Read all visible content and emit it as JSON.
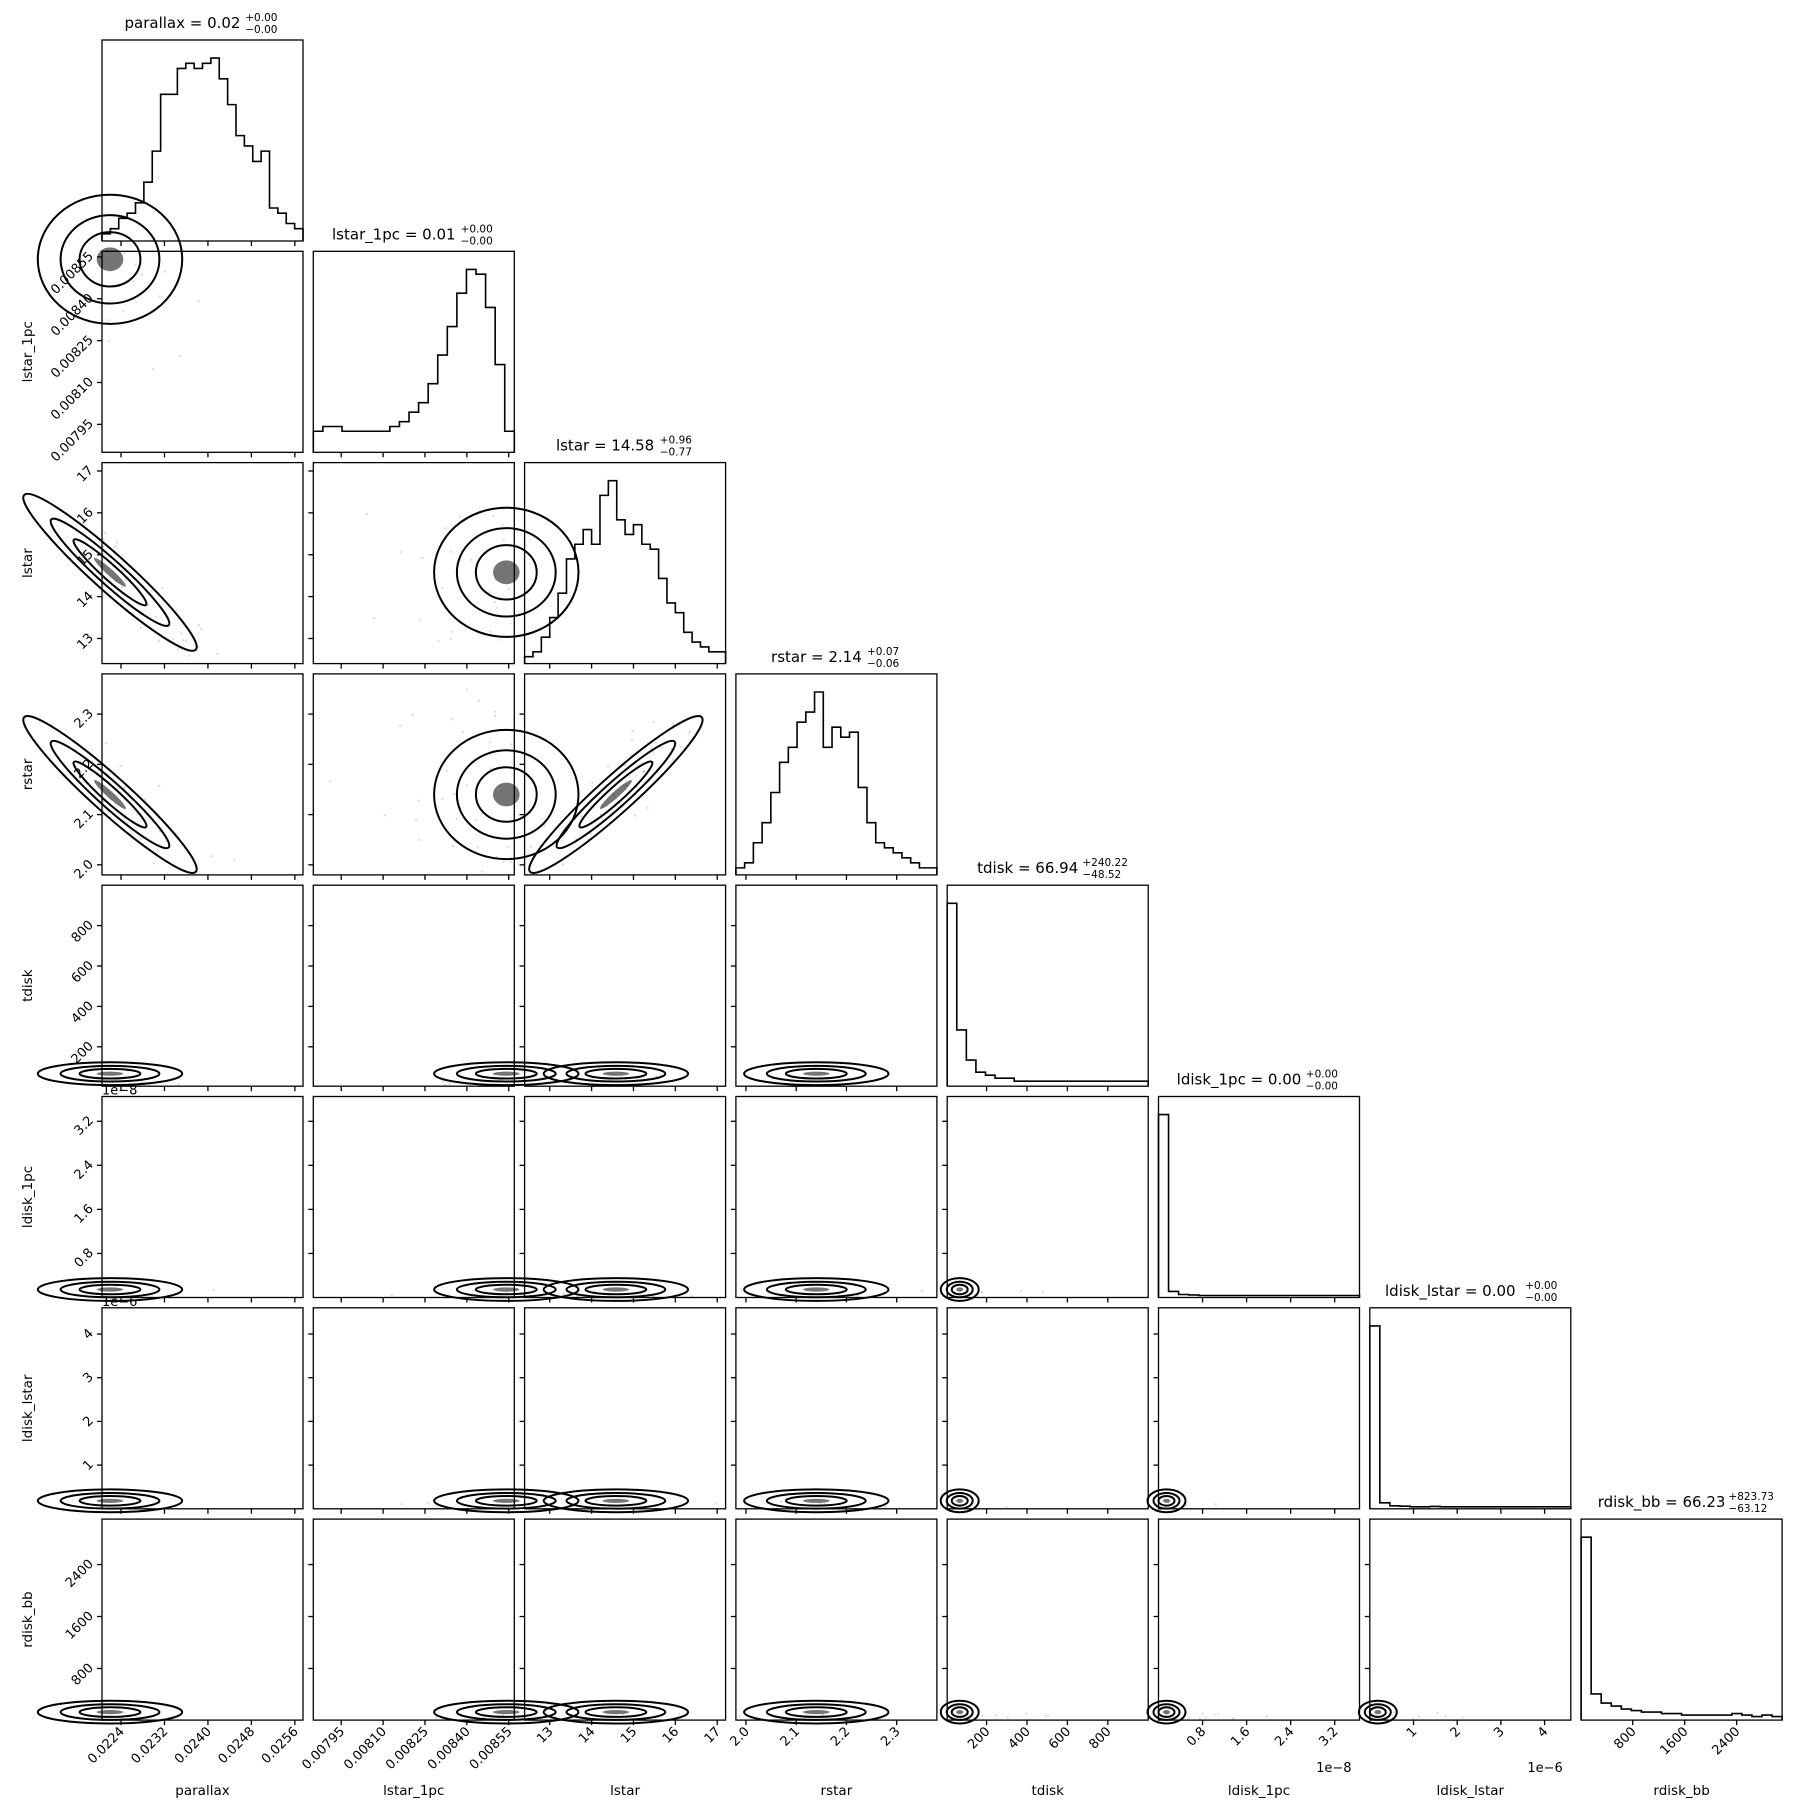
{
  "chart_data": {
    "type": "corner",
    "params": [
      "parallax",
      "lstar_1pc",
      "lstar",
      "rstar",
      "tdisk",
      "ldisk_1pc",
      "ldisk_lstar",
      "rdisk_bb"
    ],
    "titles": [
      {
        "label": "parallax = 0.02",
        "sup": "+0.00",
        "sub": "−0.00"
      },
      {
        "label": "lstar_1pc = 0.01",
        "sup": "+0.00",
        "sub": "−0.00"
      },
      {
        "label": "lstar = 14.58",
        "sup": "+0.96",
        "sub": "−0.77"
      },
      {
        "label": "rstar = 2.14",
        "sup": "+0.07",
        "sub": "−0.06"
      },
      {
        "label": "tdisk = 66.94",
        "sup": "+240.22",
        "sub": "−48.52"
      },
      {
        "label": "ldisk_1pc = 0.00",
        "sup": "+0.00",
        "sub": "−0.00"
      },
      {
        "label": "ldisk_lstar = 0.00",
        "sup": "+0.00",
        "sub": "−0.00"
      },
      {
        "label": "rdisk_bb = 66.23",
        "sup": "+823.73",
        "sub": "−63.12"
      }
    ],
    "medians": [
      0.02,
      0.01,
      14.58,
      2.14,
      66.94,
      0.0,
      0.0,
      66.23
    ],
    "ranges": [
      [
        0.02205,
        0.02575
      ],
      [
        0.00785,
        0.00857
      ],
      [
        12.4,
        17.2
      ],
      [
        1.98,
        2.38
      ],
      [
        5,
        1000
      ],
      [
        0,
        3.65e-08
      ],
      [
        0,
        4.6e-06
      ],
      [
        5,
        3100
      ]
    ],
    "ticks": [
      [
        "0.0224",
        "0.0232",
        "0.0240",
        "0.0248",
        "0.0256"
      ],
      [
        "0.00795",
        "0.00810",
        "0.00825",
        "0.00840",
        "0.00855"
      ],
      [
        "13",
        "14",
        "15",
        "16",
        "17"
      ],
      [
        "2.0",
        "2.1",
        "2.2",
        "2.3"
      ],
      [
        "200",
        "400",
        "600",
        "800"
      ],
      [
        "0.8",
        "1.6",
        "2.4",
        "3.2"
      ],
      [
        "1",
        "2",
        "3",
        "4"
      ],
      [
        "800",
        "1600",
        "2400"
      ]
    ],
    "tick_values": [
      [
        0.0224,
        0.0232,
        0.024,
        0.0248,
        0.0256
      ],
      [
        0.00795,
        0.0081,
        0.00825,
        0.0084,
        0.00855
      ],
      [
        13,
        14,
        15,
        16,
        17
      ],
      [
        2.0,
        2.1,
        2.2,
        2.3
      ],
      [
        200,
        400,
        600,
        800
      ],
      [
        8e-09,
        1.6e-08,
        2.4e-08,
        3.2e-08
      ],
      [
        1e-06,
        2e-06,
        3e-06,
        4e-06
      ],
      [
        800,
        1600,
        2400
      ]
    ],
    "offsets": [
      "",
      "",
      "",
      "",
      "",
      "1e−8",
      "1e−6",
      ""
    ],
    "histograms": [
      [
        1,
        2,
        4,
        5,
        7,
        11,
        17,
        28,
        28,
        33,
        34,
        33,
        34,
        35,
        31,
        26,
        20,
        18,
        15,
        17,
        6,
        5,
        3,
        2
      ],
      [
        4,
        5,
        5,
        4,
        4,
        4,
        4,
        4,
        5,
        6,
        8,
        10,
        14,
        20,
        26,
        33,
        38,
        37,
        30,
        18,
        4
      ],
      [
        1,
        2,
        5,
        9,
        14,
        21,
        24,
        27,
        24,
        34,
        37,
        29,
        26,
        28,
        24,
        23,
        17,
        12,
        10,
        6,
        4,
        3,
        2,
        2
      ],
      [
        1,
        2,
        6,
        10,
        16,
        22,
        25,
        30,
        32,
        36,
        25,
        29,
        27,
        28,
        17,
        10,
        6,
        5,
        4,
        3,
        2,
        1,
        1
      ],
      [
        60,
        18,
        8,
        4,
        3,
        2,
        2,
        1,
        1,
        1,
        1,
        1,
        1,
        1,
        1,
        1,
        1,
        1,
        1,
        1,
        1
      ],
      [
        90,
        2,
        0.5,
        0.3,
        0,
        0,
        0,
        0,
        0,
        0,
        0,
        0,
        0,
        0,
        0,
        0,
        0,
        0,
        0,
        0
      ],
      [
        90,
        2,
        0.5,
        0.3,
        0,
        0,
        0.2,
        0,
        0,
        0,
        0,
        0,
        0,
        0,
        0,
        0,
        0,
        0,
        0,
        0
      ],
      [
        60,
        8,
        5,
        4,
        3,
        2.5,
        2,
        2,
        1.5,
        1.5,
        1,
        1,
        1,
        1,
        1,
        1.5,
        1,
        0.5,
        1,
        0.5
      ]
    ]
  }
}
